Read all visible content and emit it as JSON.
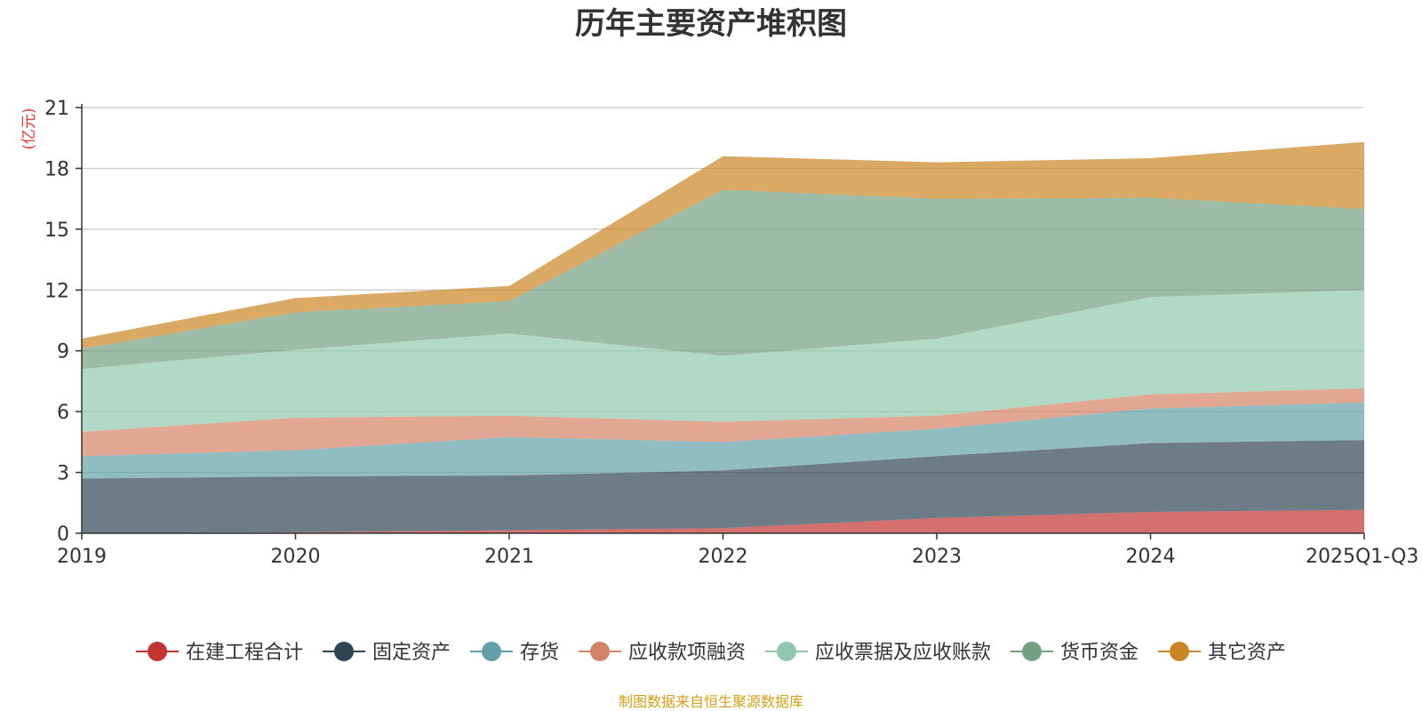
{
  "chart_data": {
    "type": "area",
    "stacked": true,
    "title": "历年主要资产堆积图",
    "ylabel": "(亿元)",
    "xlabel": "",
    "categories": [
      "2019",
      "2020",
      "2021",
      "2022",
      "2023",
      "2024",
      "2025Q1-Q3"
    ],
    "ylim": [
      0,
      21
    ],
    "yticks": [
      "0",
      "3",
      "6",
      "9",
      "12",
      "15",
      "18",
      "21"
    ],
    "grid": true,
    "legend_position": "bottom",
    "series": [
      {
        "name": "在建工程合计",
        "color": "#c23531",
        "values": [
          0.0,
          0.05,
          0.15,
          0.25,
          0.75,
          1.05,
          1.15
        ]
      },
      {
        "name": "固定资产",
        "color": "#2f4554",
        "values": [
          2.7,
          2.75,
          2.7,
          2.85,
          3.05,
          3.4,
          3.45
        ]
      },
      {
        "name": "存货",
        "color": "#61a0a8",
        "values": [
          1.1,
          1.3,
          1.9,
          1.4,
          1.35,
          1.7,
          1.85
        ]
      },
      {
        "name": "应收款项融资",
        "color": "#d48265",
        "values": [
          1.2,
          1.6,
          1.05,
          1.0,
          0.65,
          0.7,
          0.7
        ]
      },
      {
        "name": "应收票据及应收账款",
        "color": "#91c7ae",
        "values": [
          3.1,
          3.35,
          4.05,
          3.25,
          3.8,
          4.8,
          4.85
        ]
      },
      {
        "name": "货币资金",
        "color": "#749f83",
        "values": [
          1.0,
          1.85,
          1.6,
          8.2,
          6.9,
          4.9,
          4.0
        ]
      },
      {
        "name": "其它资产",
        "color": "#ca8622",
        "values": [
          0.5,
          0.7,
          0.75,
          1.65,
          1.8,
          1.95,
          3.3
        ]
      }
    ]
  },
  "source_note": "制图数据来自恒生聚源数据库"
}
